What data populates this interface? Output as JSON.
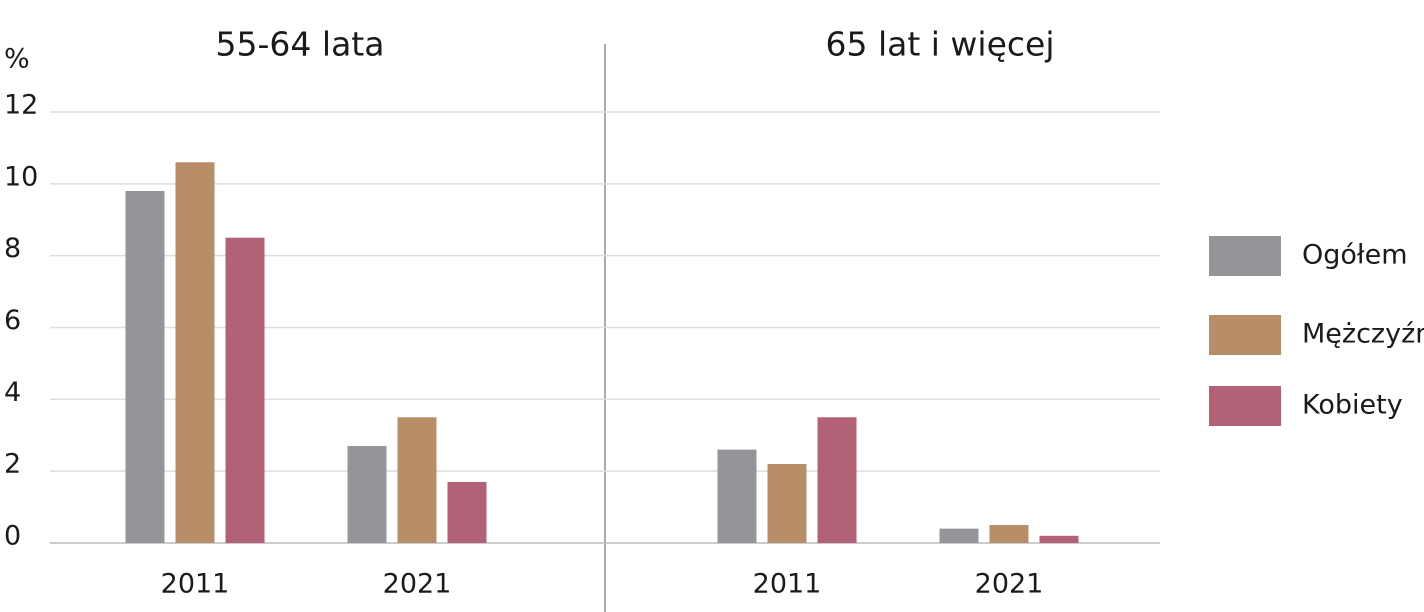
{
  "chart_data": [
    {
      "type": "bar",
      "title": "55-64 lata",
      "y_label": "%",
      "categories": [
        "2011",
        "2021"
      ],
      "series": [
        {
          "name": "Ogółem",
          "color": "#939598",
          "values": [
            9.8,
            2.7
          ]
        },
        {
          "name": "Mężczyźni",
          "color": "#b88e68",
          "values": [
            10.6,
            3.5
          ]
        },
        {
          "name": "Kobiety",
          "color": "#b36177",
          "values": [
            8.5,
            1.7
          ]
        }
      ],
      "ylim": [
        0,
        12
      ],
      "yticks": [
        0,
        2,
        4,
        6,
        8,
        10,
        12
      ],
      "grid": true,
      "legend": "right"
    },
    {
      "type": "bar",
      "title": "65 lat i więcej",
      "categories": [
        "2011",
        "2021"
      ],
      "series": [
        {
          "name": "Ogółem",
          "color": "#939598",
          "values": [
            2.6,
            0.4
          ]
        },
        {
          "name": "Mężczyźni",
          "color": "#b88e68",
          "values": [
            2.2,
            0.5
          ]
        },
        {
          "name": "Kobiety",
          "color": "#b36177",
          "values": [
            3.5,
            0.2
          ]
        }
      ],
      "ylim": [
        0,
        12
      ],
      "yticks": [
        0,
        2,
        4,
        6,
        8,
        10,
        12
      ],
      "grid": true
    }
  ]
}
